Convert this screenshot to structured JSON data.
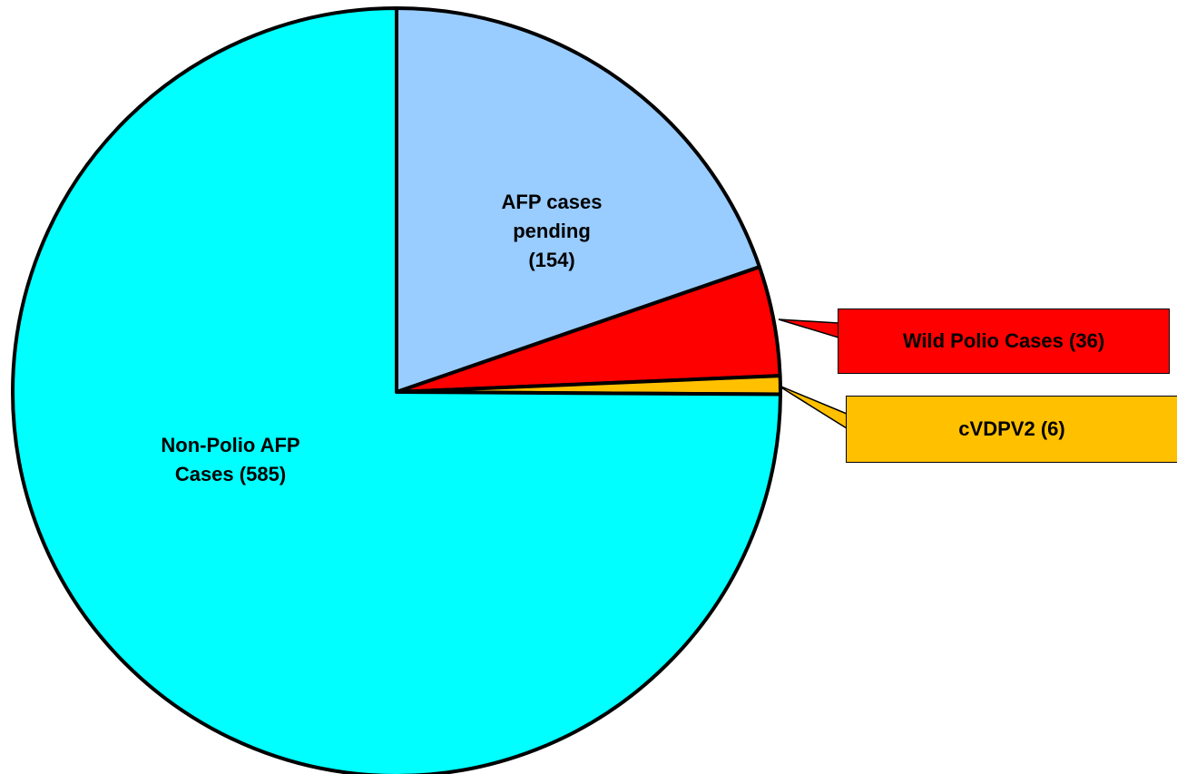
{
  "chart_data": {
    "type": "pie",
    "categories": [
      "AFP cases pending",
      "Wild Polio Cases",
      "cVDPV2",
      "Non-Polio AFP Cases"
    ],
    "values": [
      154,
      36,
      6,
      585
    ],
    "value_labels": [
      "(154)",
      "(36)",
      "(6)",
      "(585)"
    ],
    "colors": [
      "#99ccff",
      "#ff0000",
      "#ffc000",
      "#00ffff"
    ],
    "start_angle": 0,
    "direction": "clockwise"
  }
}
